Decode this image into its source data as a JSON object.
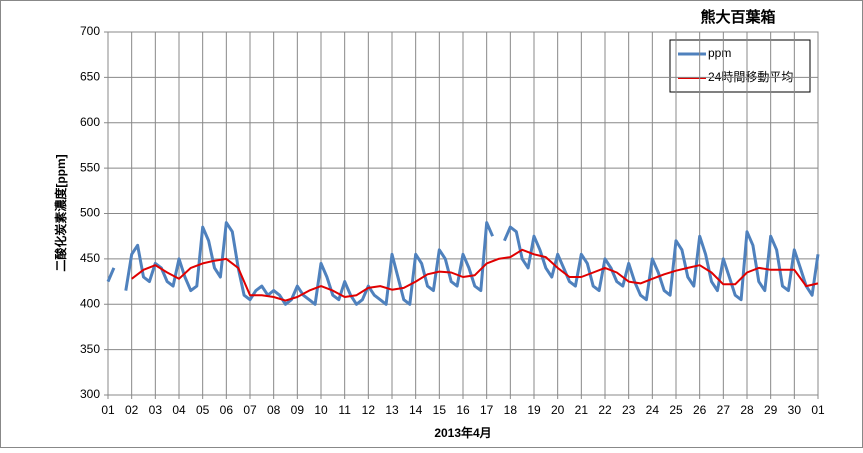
{
  "chart_data": {
    "type": "line",
    "title": "熊大百葉箱",
    "x_label": "2013年4月",
    "y_label": "二酸化炭素濃度[ppm]",
    "xlim": [
      0,
      30
    ],
    "ylim": [
      300,
      700
    ],
    "xticks": [
      {
        "value": 0,
        "label": "01"
      },
      {
        "value": 1,
        "label": "02"
      },
      {
        "value": 2,
        "label": "03"
      },
      {
        "value": 3,
        "label": "04"
      },
      {
        "value": 4,
        "label": "05"
      },
      {
        "value": 5,
        "label": "06"
      },
      {
        "value": 6,
        "label": "07"
      },
      {
        "value": 7,
        "label": "08"
      },
      {
        "value": 8,
        "label": "09"
      },
      {
        "value": 9,
        "label": "10"
      },
      {
        "value": 10,
        "label": "11"
      },
      {
        "value": 11,
        "label": "12"
      },
      {
        "value": 12,
        "label": "13"
      },
      {
        "value": 13,
        "label": "14"
      },
      {
        "value": 14,
        "label": "15"
      },
      {
        "value": 15,
        "label": "16"
      },
      {
        "value": 16,
        "label": "17"
      },
      {
        "value": 17,
        "label": "18"
      },
      {
        "value": 18,
        "label": "19"
      },
      {
        "value": 19,
        "label": "20"
      },
      {
        "value": 20,
        "label": "21"
      },
      {
        "value": 21,
        "label": "22"
      },
      {
        "value": 22,
        "label": "23"
      },
      {
        "value": 23,
        "label": "24"
      },
      {
        "value": 24,
        "label": "25"
      },
      {
        "value": 25,
        "label": "26"
      },
      {
        "value": 26,
        "label": "27"
      },
      {
        "value": 27,
        "label": "28"
      },
      {
        "value": 28,
        "label": "29"
      },
      {
        "value": 29,
        "label": "30"
      },
      {
        "value": 30,
        "label": "01"
      }
    ],
    "yticks": [
      300,
      350,
      400,
      450,
      500,
      550,
      600,
      650,
      700
    ],
    "grid": true,
    "legend": "top-right",
    "series": [
      {
        "name": "ppm",
        "color": "#4f81bd",
        "width": 3,
        "x": [
          0,
          0.25,
          0.5,
          0.75,
          1,
          1.25,
          1.5,
          1.75,
          2,
          2.25,
          2.5,
          2.75,
          3,
          3.25,
          3.5,
          3.75,
          4,
          4.25,
          4.5,
          4.75,
          5,
          5.25,
          5.5,
          5.75,
          6,
          6.25,
          6.5,
          6.75,
          7,
          7.25,
          7.5,
          7.75,
          8,
          8.25,
          8.5,
          8.75,
          9,
          9.25,
          9.5,
          9.75,
          10,
          10.25,
          10.5,
          10.75,
          11,
          11.25,
          11.5,
          11.75,
          12,
          12.25,
          12.5,
          12.75,
          13,
          13.25,
          13.5,
          13.75,
          14,
          14.25,
          14.5,
          14.75,
          15,
          15.25,
          15.5,
          15.75,
          16,
          16.25,
          16.5,
          16.75,
          17,
          17.25,
          17.5,
          17.75,
          18,
          18.25,
          18.5,
          18.75,
          19,
          19.25,
          19.5,
          19.75,
          20,
          20.25,
          20.5,
          20.75,
          21,
          21.25,
          21.5,
          21.75,
          22,
          22.25,
          22.5,
          22.75,
          23,
          23.25,
          23.5,
          23.75,
          24,
          24.25,
          24.5,
          24.75,
          25,
          25.25,
          25.5,
          25.75,
          26,
          26.25,
          26.5,
          26.75,
          27,
          27.25,
          27.5,
          27.75,
          28,
          28.25,
          28.5,
          28.75,
          29,
          29.25,
          29.5,
          29.75,
          30
        ],
        "values": [
          425,
          440,
          null,
          415,
          455,
          465,
          430,
          425,
          445,
          440,
          425,
          420,
          450,
          430,
          415,
          420,
          485,
          470,
          440,
          430,
          490,
          480,
          440,
          410,
          405,
          415,
          420,
          410,
          415,
          410,
          400,
          405,
          420,
          410,
          405,
          400,
          445,
          430,
          410,
          405,
          425,
          410,
          400,
          405,
          420,
          410,
          405,
          400,
          455,
          430,
          405,
          400,
          455,
          445,
          420,
          415,
          460,
          450,
          425,
          420,
          455,
          440,
          420,
          415,
          490,
          475,
          null,
          470,
          485,
          480,
          450,
          440,
          475,
          460,
          440,
          430,
          455,
          440,
          425,
          420,
          455,
          445,
          420,
          415,
          450,
          440,
          425,
          420,
          445,
          425,
          410,
          405,
          450,
          435,
          415,
          410,
          470,
          460,
          430,
          420,
          475,
          455,
          425,
          415,
          450,
          430,
          410,
          405,
          480,
          465,
          425,
          415,
          475,
          460,
          420,
          415,
          460,
          440,
          420,
          410,
          455
        ]
      },
      {
        "name": "24時間移動平均",
        "color": "#e00000",
        "width": 2,
        "x": [
          1,
          1.5,
          2,
          2.5,
          3,
          3.5,
          4,
          4.5,
          5,
          5.5,
          6,
          6.5,
          7,
          7.5,
          8,
          8.5,
          9,
          9.5,
          10,
          10.5,
          11,
          11.5,
          12,
          12.5,
          13,
          13.5,
          14,
          14.5,
          15,
          15.5,
          16,
          16.5,
          17,
          17.5,
          18,
          18.5,
          19,
          19.5,
          20,
          20.5,
          21,
          21.5,
          22,
          22.5,
          23,
          23.5,
          24,
          24.5,
          25,
          25.5,
          26,
          26.5,
          27,
          27.5,
          28,
          28.5,
          29,
          29.5,
          30
        ],
        "values": [
          428,
          438,
          443,
          435,
          428,
          440,
          445,
          448,
          450,
          440,
          410,
          410,
          408,
          404,
          408,
          415,
          420,
          415,
          408,
          410,
          418,
          420,
          416,
          418,
          425,
          433,
          436,
          435,
          430,
          432,
          445,
          450,
          452,
          460,
          455,
          452,
          440,
          430,
          430,
          435,
          440,
          435,
          425,
          423,
          428,
          433,
          437,
          440,
          443,
          435,
          422,
          422,
          435,
          440,
          438,
          438,
          438,
          420,
          423
        ]
      }
    ]
  }
}
